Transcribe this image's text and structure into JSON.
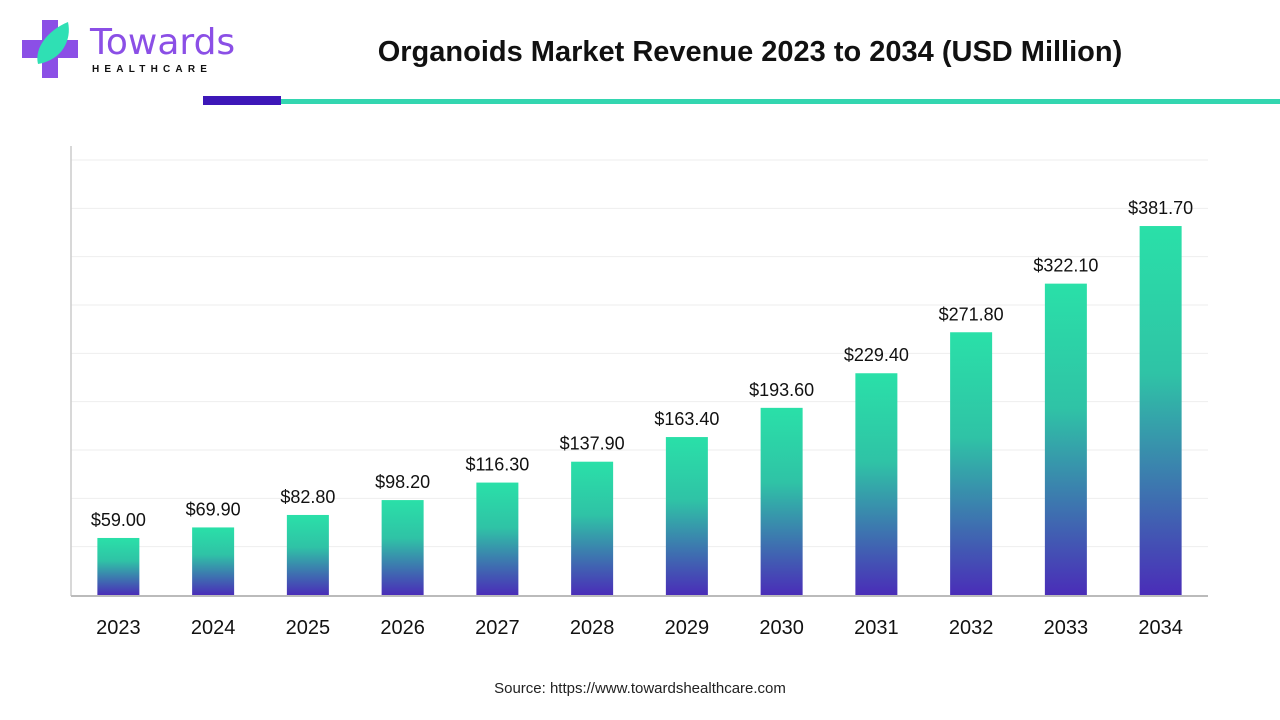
{
  "logo": {
    "word": "Towards",
    "sub": "HEALTHCARE"
  },
  "colors": {
    "teal": "#2ae0a8",
    "purple": "#4a2db8",
    "accent_purple": "#3d17b8",
    "accent_teal": "#33d6b0"
  },
  "source": "Source: https://www.towardshealthcare.com",
  "chart_data": {
    "type": "bar",
    "title": "Organoids Market Revenue 2023 to 2034 (USD Million)",
    "xlabel": "",
    "ylabel": "",
    "categories": [
      "2023",
      "2024",
      "2025",
      "2026",
      "2027",
      "2028",
      "2029",
      "2030",
      "2031",
      "2032",
      "2033",
      "2034"
    ],
    "values": [
      59.0,
      69.9,
      82.8,
      98.2,
      116.3,
      137.9,
      163.4,
      193.6,
      229.4,
      271.8,
      322.1,
      381.7
    ],
    "data_labels": [
      "$59.00",
      "$69.90",
      "$82.80",
      "$98.20",
      "$116.30",
      "$137.90",
      "$163.40",
      "$193.60",
      "$229.40",
      "$271.80",
      "$322.10",
      "$381.70"
    ],
    "ylim": [
      0,
      450
    ],
    "grid_step": 50,
    "grid": true,
    "legend": "none"
  }
}
